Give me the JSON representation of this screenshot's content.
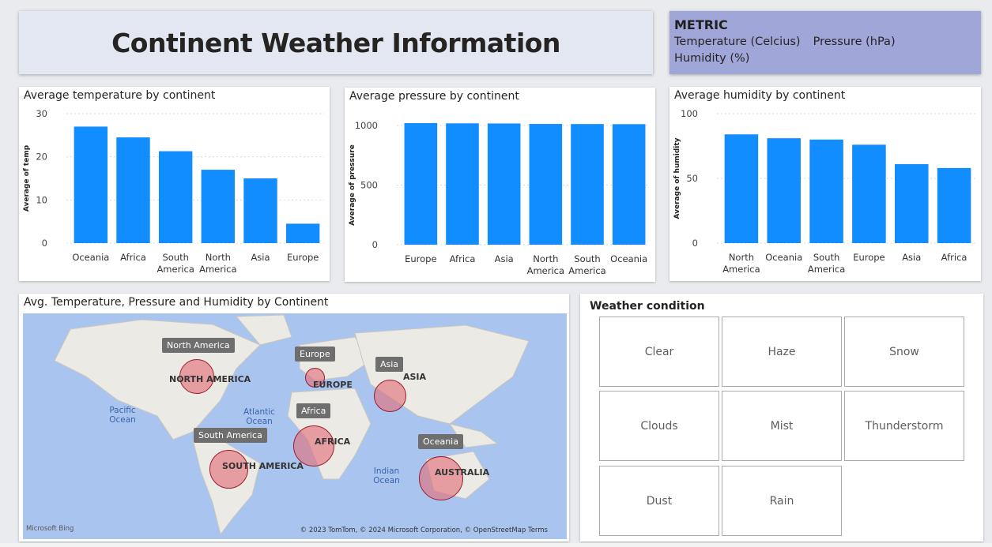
{
  "title": "Continent Weather Information",
  "metric": {
    "heading": "METRIC",
    "options": [
      "Temperature (Celcius)",
      "Pressure (hPa)",
      "Humidity (%)"
    ]
  },
  "colors": {
    "bar": "#118dff",
    "metric_bg": "#a0a6d8",
    "bubble": "#e26e78"
  },
  "chart_data": [
    {
      "type": "bar",
      "title": "Average temperature by continent",
      "ylabel": "Average of temp",
      "categories": [
        "Oceania",
        "Africa",
        "South America",
        "North America",
        "Asia",
        "Europe"
      ],
      "values": [
        27,
        24.5,
        21.3,
        17,
        15,
        4.5
      ],
      "ylim": [
        0,
        30
      ],
      "yticks": [
        0,
        10,
        20,
        30
      ],
      "grid": true
    },
    {
      "type": "bar",
      "title": "Average pressure by continent",
      "ylabel": "Average of pressure",
      "categories": [
        "Europe",
        "Africa",
        "Asia",
        "North America",
        "South America",
        "Oceania"
      ],
      "values": [
        1020,
        1018,
        1017,
        1013,
        1012,
        1011
      ],
      "ylim": [
        0,
        1000
      ],
      "yticks": [
        0,
        500,
        1000
      ],
      "grid": true
    },
    {
      "type": "bar",
      "title": "Average humidity by continent",
      "ylabel": "Average of humidity",
      "categories": [
        "North America",
        "Oceania",
        "South America",
        "Europe",
        "Asia",
        "Africa"
      ],
      "values": [
        84,
        81,
        80,
        76,
        61,
        58
      ],
      "ylim": [
        0,
        100
      ],
      "yticks": [
        0,
        50,
        100
      ],
      "grid": true
    }
  ],
  "map": {
    "title": "Avg. Temperature, Pressure and Humidity by Continent",
    "tooltips": [
      "North America",
      "Europe",
      "Asia",
      "Africa",
      "South America",
      "Oceania"
    ],
    "continent_labels": [
      "NORTH AMERICA",
      "EUROPE",
      "ASIA",
      "AFRICA",
      "SOUTH AMERICA",
      "AUSTRALIA"
    ],
    "oceans": [
      "Pacific Ocean",
      "Atlantic Ocean",
      "Indian Ocean"
    ],
    "logo": "Microsoft Bing",
    "attribution": "© 2023 TomTom, © 2024 Microsoft Corporation, © OpenStreetMap  Terms"
  },
  "weather_condition": {
    "title": "Weather condition",
    "options": [
      "Clear",
      "Haze",
      "Snow",
      "Clouds",
      "Mist",
      "Thunderstorm",
      "Dust",
      "Rain"
    ]
  }
}
